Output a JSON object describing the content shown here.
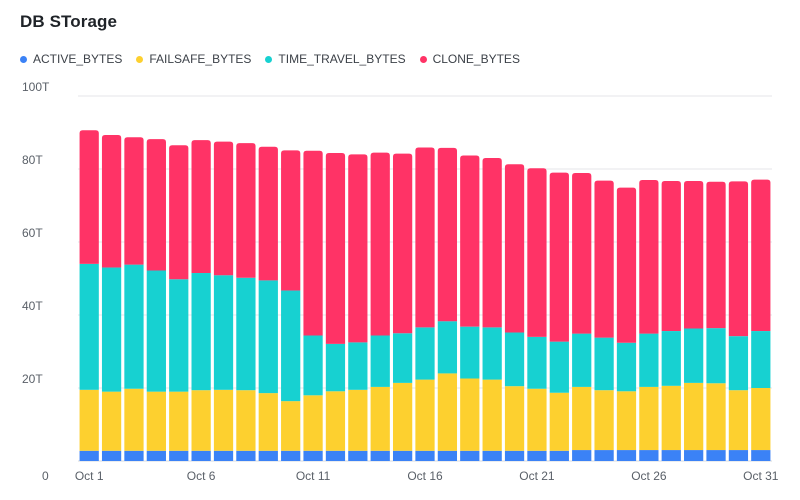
{
  "chart_data": {
    "type": "bar",
    "stacked": true,
    "title": "DB STorage",
    "colors": {
      "ACTIVE_BYTES": "#3b82f6",
      "FAILSAFE_BYTES": "#fdd02f",
      "TIME_TRAVEL_BYTES": "#17d1d1",
      "CLONE_BYTES": "#ff3366"
    },
    "legend_position": "top-left",
    "grid": true,
    "ylim": [
      0,
      100
    ],
    "y_ticks": [
      "0",
      "20T",
      "40T",
      "60T",
      "80T",
      "100T"
    ],
    "y_tick_values": [
      0,
      20,
      40,
      60,
      80,
      100
    ],
    "categories": [
      "Oct 1",
      "Oct 2",
      "Oct 3",
      "Oct 4",
      "Oct 5",
      "Oct 6",
      "Oct 7",
      "Oct 8",
      "Oct 9",
      "Oct 10",
      "Oct 11",
      "Oct 12",
      "Oct 13",
      "Oct 14",
      "Oct 15",
      "Oct 16",
      "Oct 17",
      "Oct 18",
      "Oct 19",
      "Oct 20",
      "Oct 21",
      "Oct 22",
      "Oct 23",
      "Oct 24",
      "Oct 25",
      "Oct 26",
      "Oct 27",
      "Oct 28",
      "Oct 29",
      "Oct 30",
      "Oct 31"
    ],
    "x_tick_labels": [
      "Oct 1",
      "Oct 6",
      "Oct 11",
      "Oct 16",
      "Oct 21",
      "Oct 26",
      "Oct 31"
    ],
    "series": [
      {
        "name": "ACTIVE_BYTES",
        "values": [
          2.8,
          2.8,
          2.8,
          2.8,
          2.8,
          2.8,
          2.8,
          2.8,
          2.8,
          2.8,
          2.8,
          2.8,
          2.8,
          2.8,
          2.8,
          2.8,
          2.8,
          2.8,
          2.8,
          2.8,
          2.8,
          2.8,
          3.0,
          3.0,
          3.0,
          3.0,
          3.0,
          3.0,
          3.0,
          3.0,
          3.0
        ]
      },
      {
        "name": "FAILSAFE_BYTES",
        "values": [
          16.7,
          16.2,
          17.0,
          16.2,
          16.2,
          16.6,
          16.7,
          16.6,
          15.8,
          13.6,
          15.2,
          16.3,
          16.7,
          17.5,
          18.6,
          19.5,
          21.2,
          19.8,
          19.5,
          17.7,
          17.0,
          15.9,
          17.3,
          16.4,
          16.1,
          17.3,
          17.6,
          18.4,
          18.3,
          16.4,
          17.0
        ]
      },
      {
        "name": "TIME_TRAVEL_BYTES",
        "values": [
          34.5,
          34.0,
          34.0,
          33.2,
          30.8,
          32.1,
          31.4,
          30.8,
          30.9,
          30.3,
          16.4,
          13.0,
          13.0,
          14.1,
          13.6,
          14.3,
          14.3,
          14.2,
          14.3,
          14.7,
          14.2,
          14.0,
          14.6,
          14.4,
          13.3,
          14.6,
          15.0,
          14.9,
          15.1,
          14.8,
          15.6
        ]
      },
      {
        "name": "CLONE_BYTES",
        "values": [
          36.6,
          36.3,
          34.9,
          36.0,
          36.7,
          36.4,
          36.6,
          36.9,
          36.6,
          38.4,
          50.6,
          52.3,
          51.5,
          50.1,
          49.2,
          49.3,
          47.5,
          46.9,
          46.4,
          46.1,
          46.2,
          46.3,
          44.0,
          43.0,
          42.5,
          42.1,
          41.1,
          40.4,
          40.1,
          42.4,
          41.5
        ]
      }
    ]
  }
}
